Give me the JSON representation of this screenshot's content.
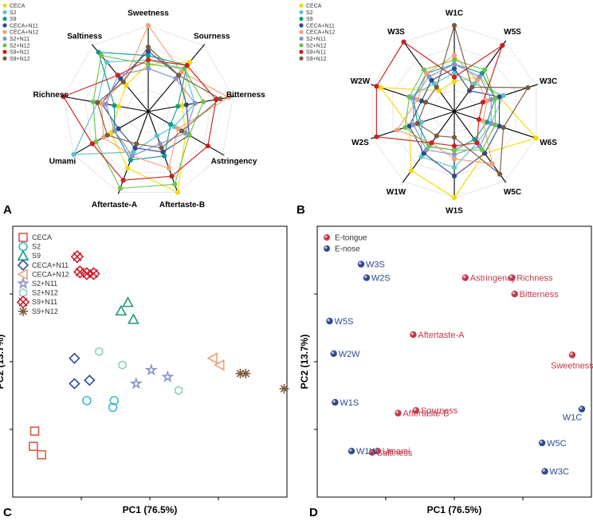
{
  "colors": {
    "CECA": "#f5d800",
    "S2": "#5bc2cc",
    "S9": "#129a8e",
    "CECA+N11": "#2e4a8a",
    "CECA+N12": "#f2a078",
    "S2+N11": "#8a94c9",
    "S2+N12": "#6dc24e",
    "S9+N11": "#cc1f1f",
    "S9+N12": "#7a5a3f",
    "pca_c": {
      "CECA": "#e05a45",
      "S2": "#3fb6c8",
      "S9": "#1a9a7a",
      "CECA+N11": "#2f4f95",
      "CECA+N12": "#f0a07a",
      "S2+N11": "#8a94c9",
      "S2+N12": "#8fd1c4",
      "S9+N11": "#cc1f2d",
      "S9+N12": "#7a5a3f"
    },
    "tongue": "#c0394a",
    "nose": "#2f4a8f"
  },
  "chart_data": [
    {
      "panel": "A",
      "type": "radar",
      "axes": [
        "Sweetness",
        "Sourness",
        "Bitterness",
        "Astringency",
        "Aftertaste-B",
        "Aftertaste-A",
        "Umami",
        "Richness",
        "Saltiness"
      ],
      "series": [
        {
          "name": "CECA",
          "values": [
            0.55,
            0.75,
            0.4,
            0.5,
            1.0,
            0.7,
            0.5,
            0.35,
            0.4
          ]
        },
        {
          "name": "S2",
          "values": [
            0.6,
            0.65,
            0.55,
            0.35,
            0.3,
            0.5,
            1.0,
            0.6,
            0.75
          ]
        },
        {
          "name": "S9",
          "values": [
            0.65,
            0.7,
            0.35,
            0.3,
            0.55,
            0.6,
            0.45,
            0.4,
            0.9
          ]
        },
        {
          "name": "CECA+N11",
          "values": [
            0.7,
            0.55,
            0.45,
            0.55,
            0.5,
            0.45,
            0.4,
            0.55,
            0.5
          ]
        },
        {
          "name": "CECA+N12",
          "values": [
            1.0,
            0.6,
            0.95,
            0.4,
            0.7,
            0.55,
            0.6,
            0.55,
            0.45
          ]
        },
        {
          "name": "S2+N11",
          "values": [
            0.5,
            0.5,
            0.55,
            0.5,
            0.4,
            0.55,
            0.45,
            0.5,
            0.55
          ]
        },
        {
          "name": "S2+N12",
          "values": [
            0.55,
            0.65,
            0.65,
            0.55,
            0.9,
            0.95,
            0.7,
            0.65,
            0.85
          ]
        },
        {
          "name": "S9+N11",
          "values": [
            0.6,
            0.7,
            0.8,
            0.8,
            0.8,
            0.85,
            0.75,
            1.0,
            0.55
          ]
        },
        {
          "name": "S9+N12",
          "values": [
            0.75,
            0.55,
            0.85,
            0.45,
            0.45,
            0.4,
            0.55,
            0.6,
            0.45
          ]
        }
      ]
    },
    {
      "panel": "B",
      "type": "radar",
      "axes": [
        "W1C",
        "W5S",
        "W3C",
        "W6S",
        "W5C",
        "W1S",
        "W1W",
        "W2S",
        "W2W",
        "W3S"
      ],
      "series": [
        {
          "name": "CECA",
          "values": [
            0.35,
            0.5,
            0.55,
            1.0,
            0.6,
            1.0,
            0.85,
            0.55,
            0.9,
            0.3
          ]
        },
        {
          "name": "S2",
          "values": [
            0.45,
            0.4,
            0.6,
            0.45,
            0.45,
            0.65,
            0.65,
            0.4,
            0.55,
            0.4
          ]
        },
        {
          "name": "S9",
          "values": [
            0.55,
            0.55,
            0.5,
            0.4,
            0.4,
            0.45,
            0.5,
            0.45,
            0.5,
            0.55
          ]
        },
        {
          "name": "CECA+N11",
          "values": [
            0.5,
            0.3,
            0.55,
            0.55,
            0.6,
            0.75,
            0.6,
            0.55,
            0.4,
            0.45
          ]
        },
        {
          "name": "CECA+N12",
          "values": [
            0.65,
            0.45,
            0.4,
            0.35,
            0.75,
            0.55,
            0.45,
            0.7,
            0.45,
            0.55
          ]
        },
        {
          "name": "S2+N11",
          "values": [
            0.55,
            0.5,
            0.45,
            0.45,
            0.5,
            0.5,
            0.55,
            0.5,
            0.5,
            0.5
          ]
        },
        {
          "name": "S2+N12",
          "values": [
            0.6,
            0.6,
            0.5,
            0.5,
            0.55,
            0.45,
            0.5,
            0.6,
            0.55,
            0.6
          ]
        },
        {
          "name": "S9+N11",
          "values": [
            0.4,
            0.95,
            0.35,
            0.3,
            0.45,
            0.4,
            0.45,
            0.95,
            0.95,
            1.0
          ]
        },
        {
          "name": "S9+N12",
          "values": [
            1.0,
            0.35,
            0.9,
            0.6,
            0.9,
            0.3,
            0.35,
            0.45,
            0.35,
            0.35
          ]
        }
      ]
    },
    {
      "panel": "C",
      "type": "scatter",
      "xlabel": "PC1 (76.5%)",
      "ylabel": "PC2 (13.7%)",
      "xlim": [
        -10,
        10
      ],
      "ylim": [
        -8,
        8
      ],
      "series": [
        {
          "name": "CECA",
          "marker": "square",
          "points": [
            [
              -8.4,
              -4.1
            ],
            [
              -8.5,
              -5.0
            ],
            [
              -7.9,
              -5.5
            ]
          ]
        },
        {
          "name": "S2",
          "marker": "circle",
          "points": [
            [
              -4.6,
              -2.3
            ],
            [
              -2.6,
              -2.3
            ],
            [
              -2.7,
              -2.7
            ]
          ]
        },
        {
          "name": "S9",
          "marker": "triangle",
          "points": [
            [
              -2.1,
              3.0
            ],
            [
              -1.6,
              3.5
            ],
            [
              -1.2,
              2.5
            ]
          ]
        },
        {
          "name": "CECA+N11",
          "marker": "diamond",
          "points": [
            [
              -5.5,
              0.2
            ],
            [
              -4.4,
              -1.1
            ],
            [
              -5.5,
              -1.3
            ]
          ]
        },
        {
          "name": "CECA+N12",
          "marker": "triangle-left",
          "points": [
            [
              4.6,
              0.2
            ],
            [
              5.1,
              -0.2
            ]
          ]
        },
        {
          "name": "S2+N11",
          "marker": "star",
          "points": [
            [
              0.1,
              -0.5
            ],
            [
              1.3,
              -0.9
            ],
            [
              -1.0,
              -1.3
            ]
          ]
        },
        {
          "name": "S2+N12",
          "marker": "hexagon",
          "points": [
            [
              -3.7,
              0.6
            ],
            [
              -2.0,
              -0.2
            ],
            [
              2.1,
              -1.7
            ]
          ]
        },
        {
          "name": "S9+N11",
          "marker": "cross-box",
          "points": [
            [
              -5.3,
              6.2
            ],
            [
              -5.1,
              5.3
            ],
            [
              -4.6,
              5.2
            ],
            [
              -4.1,
              5.2
            ]
          ]
        },
        {
          "name": "S9+N12",
          "marker": "asterisk",
          "points": [
            [
              6.6,
              -0.7
            ],
            [
              7.0,
              -0.7
            ],
            [
              9.8,
              -1.6
            ]
          ]
        }
      ]
    },
    {
      "panel": "D",
      "type": "scatter",
      "xlabel": "PC1 (76.5%)",
      "ylabel": "PC2 (13.7%)",
      "xlim": [
        -1,
        1
      ],
      "ylim": [
        -1,
        1
      ],
      "series": [
        {
          "name": "E-tongue",
          "points": [
            {
              "label": "Astringency",
              "x": 0.08,
              "y": 0.62
            },
            {
              "label": "Richness",
              "x": 0.42,
              "y": 0.62
            },
            {
              "label": "Bitterness",
              "x": 0.44,
              "y": 0.5
            },
            {
              "label": "Aftertaste-A",
              "x": -0.3,
              "y": 0.2
            },
            {
              "label": "Sweetness",
              "x": 0.86,
              "y": 0.05
            },
            {
              "label": "Sourness",
              "x": -0.28,
              "y": -0.36
            },
            {
              "label": "Aftertaste-B",
              "x": -0.41,
              "y": -0.38
            },
            {
              "label": "Umami",
              "x": -0.56,
              "y": -0.66
            },
            {
              "label": "Saltiness",
              "x": -0.6,
              "y": -0.67
            }
          ]
        },
        {
          "name": "E-nose",
          "points": [
            {
              "label": "W3S",
              "x": -0.68,
              "y": 0.72
            },
            {
              "label": "W2S",
              "x": -0.64,
              "y": 0.62
            },
            {
              "label": "W5S",
              "x": -0.91,
              "y": 0.3
            },
            {
              "label": "W2W",
              "x": -0.88,
              "y": 0.06
            },
            {
              "label": "W1S",
              "x": -0.87,
              "y": -0.3
            },
            {
              "label": "W1W",
              "x": -0.75,
              "y": -0.66
            },
            {
              "label": "W1C",
              "x": 0.93,
              "y": -0.35
            },
            {
              "label": "W5C",
              "x": 0.64,
              "y": -0.6
            },
            {
              "label": "W3C",
              "x": 0.66,
              "y": -0.81
            }
          ]
        }
      ]
    }
  ],
  "text": {
    "panel_letters": [
      "A",
      "B",
      "C",
      "D"
    ]
  }
}
